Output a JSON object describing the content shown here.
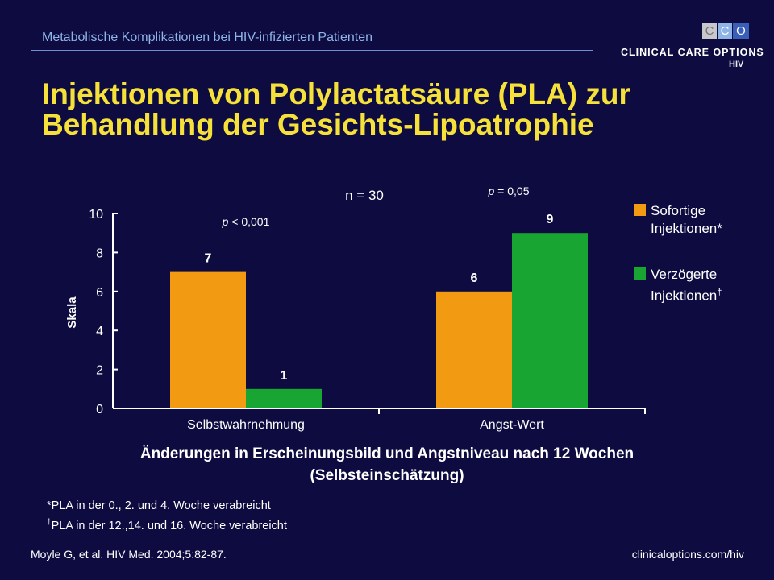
{
  "header": {
    "subtitle": "Metabolische Komplikationen bei HIV-infizierten Patienten"
  },
  "logo": {
    "letters": [
      "C",
      "C",
      "O"
    ],
    "name": "CLINICAL CARE OPTIONS",
    "sub": "HIV",
    "colors": [
      "#9a9aa0",
      "#ffffff",
      "#ffffff"
    ]
  },
  "title": {
    "line1": "Injektionen von Polylactatsäure (PLA) zur",
    "line2": "Behandlung der Gesichts-Lipoatrophie"
  },
  "chart_data": {
    "type": "bar",
    "categories": [
      "Selbstwahrnehmung",
      "Angst-Wert"
    ],
    "series": [
      {
        "name": "Sofortige Injektionen*",
        "values": [
          7,
          6
        ],
        "color": "#f29b12"
      },
      {
        "name": "Verzögerte Injektionen†",
        "values": [
          1,
          9
        ],
        "color": "#18a531"
      }
    ],
    "ylabel": "Skala",
    "ylim": [
      0,
      10
    ],
    "yticks": [
      0,
      2,
      4,
      6,
      8,
      10
    ],
    "annotations": {
      "n": "n = 30",
      "p1_sym": "p",
      "p1_rest": " < 0,001",
      "p2_sym": "p",
      "p2_rest": " = 0,05"
    },
    "legend_position": "right",
    "grid": false
  },
  "legend": {
    "items": [
      {
        "line1": "Sofortige",
        "line2": "Injektionen*",
        "dagger": ""
      },
      {
        "line1": "Verzögerte",
        "line2": "Injektionen",
        "dagger": "†"
      }
    ]
  },
  "caption": {
    "line1": "Änderungen in Erscheinungsbild und Angstniveau nach 12 Wochen",
    "line2": "(Selbsteinschätzung)"
  },
  "footnotes": {
    "f1": "*PLA in der 0., 2. und 4.  Woche verabreicht",
    "f2_dagger": "†",
    "f2": "PLA in der 12.,14. und 16. Woche verabreicht"
  },
  "footer": {
    "citation": "Moyle G, et al. HIV Med. 2004;5:82-87.",
    "site": "clinicaloptions.com/hiv"
  }
}
